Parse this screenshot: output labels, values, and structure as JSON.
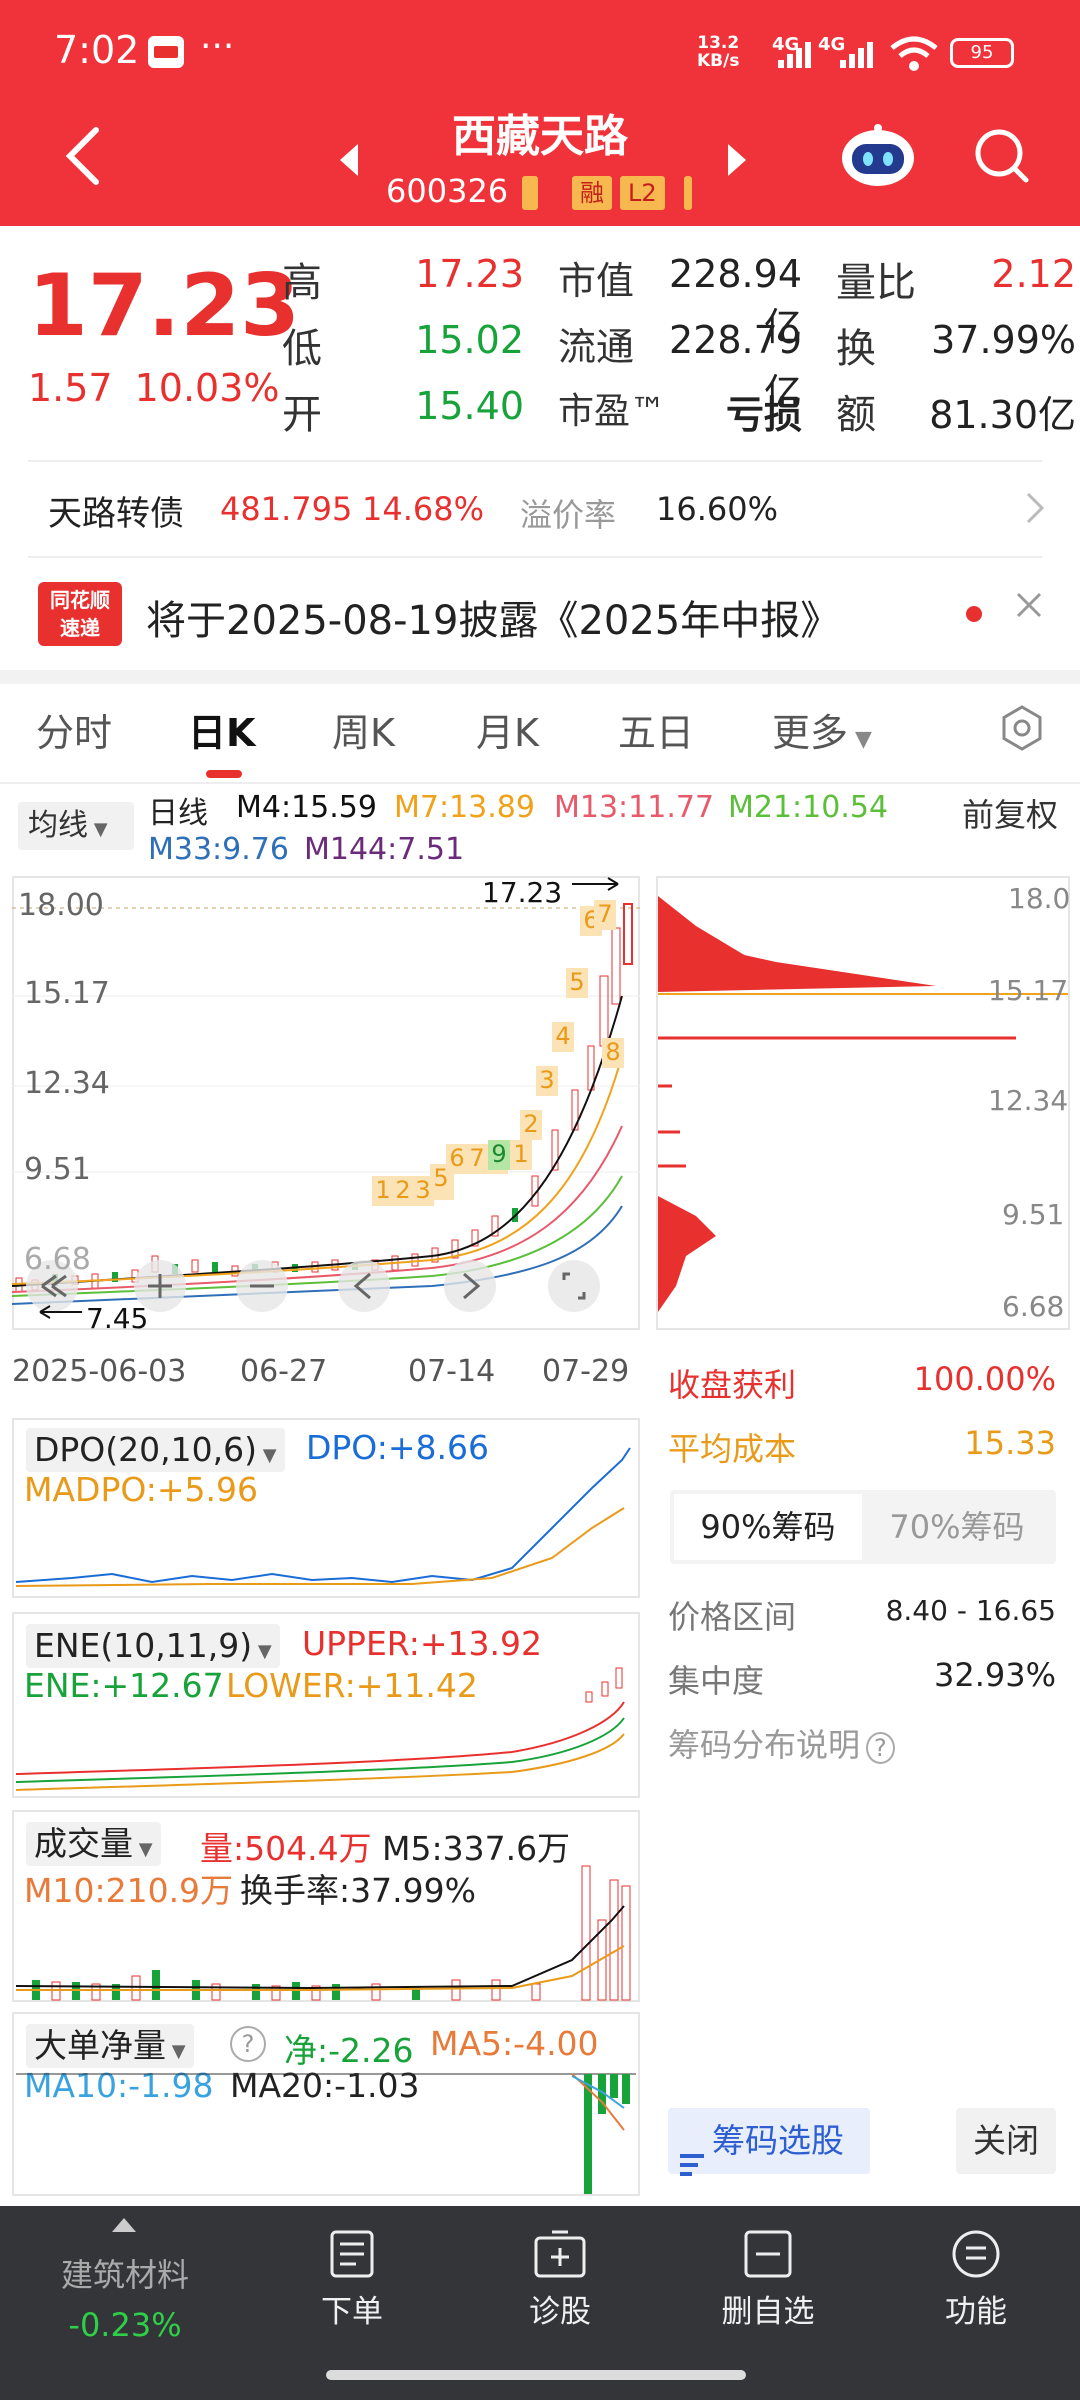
{
  "status_bar": {
    "time": "7:02",
    "dots": "···",
    "net_speed_value": "13.2",
    "net_speed_unit": "KB/s",
    "signal_1": "4G",
    "signal_2": "4G",
    "battery": "95"
  },
  "header": {
    "stock_name": "西藏天路",
    "stock_code": "600326",
    "tag_margin": "融",
    "tag_level": "L2"
  },
  "quote": {
    "price": "17.23",
    "change": "1.57",
    "change_pct": "10.03%",
    "high_label": "高",
    "high": "17.23",
    "low_label": "低",
    "low": "15.02",
    "open_label": "开",
    "open": "15.40",
    "mktcap_label": "市值",
    "mktcap": "228.94亿",
    "float_label": "流通",
    "float": "228.79亿",
    "pe_label": "市盈™",
    "pe": "亏损",
    "vol_ratio_label": "量比",
    "vol_ratio": "2.12",
    "turnover_label": "换",
    "turnover": "37.99%",
    "amount_label": "额",
    "amount": "81.30亿"
  },
  "bond": {
    "label": "天路转债",
    "price": "481.795",
    "pct": "14.68%",
    "premium_label": "溢价率",
    "premium": "16.60%"
  },
  "news": {
    "logo_line1": "同花顺",
    "logo_line2": "速递",
    "text": "将于2025-08-19披露《2025年中报》"
  },
  "tabs": [
    "分时",
    "日K",
    "周K",
    "月K",
    "五日",
    "更多"
  ],
  "ma_legend": {
    "select": "均线",
    "period": "日线",
    "m4": "M4:15.59",
    "m7": "M7:13.89",
    "m13": "M13:11.77",
    "m21": "M21:10.54",
    "m33": "M33:9.76",
    "m144": "M144:7.51",
    "adjust": "前复权"
  },
  "colors": {
    "brand_red": "#f0333a",
    "rise": "#e8312f",
    "fall": "#18a33a",
    "m4": "#111111",
    "m7": "#f0a21b",
    "m13": "#e8596a",
    "m21": "#5cbf3a",
    "m33": "#2e6fb8",
    "m144": "#6b2a7a"
  },
  "kline": {
    "y_ticks": [
      "18.00",
      "15.17",
      "12.34",
      "9.51",
      "6.68"
    ],
    "high_label": "17.23",
    "low_label": "7.45",
    "dates": [
      "2025-06-03",
      "06-27",
      "07-14",
      "07-29"
    ],
    "signal_numbers": [
      "1",
      "2",
      "3",
      "4",
      "5",
      "6",
      "7",
      "8",
      "9",
      "1",
      "2",
      "3",
      "4",
      "5",
      "6",
      "7",
      "8"
    ]
  },
  "chip_axis": [
    "18.0",
    "15.17",
    "12.34",
    "9.51",
    "6.68"
  ],
  "dpo": {
    "name": "DPO(20,10,6)",
    "dpo": "DPO:+8.66",
    "madpo": "MADPO:+5.96"
  },
  "ene": {
    "name": "ENE(10,11,9)",
    "upper": "UPPER:+13.92",
    "ene": "ENE:+12.67",
    "lower": "LOWER:+11.42"
  },
  "volume": {
    "name": "成交量",
    "vol": "量:504.4万",
    "m5": "M5:337.6万",
    "m10": "M10:210.9万",
    "turnover": "换手率:37.99%"
  },
  "bignet": {
    "name": "大单净量",
    "net": "净:-2.26",
    "ma5": "MA5:-4.00",
    "ma10": "MA10:-1.98",
    "ma20": "MA20:-1.03"
  },
  "chip_stats": {
    "profit_label": "收盘获利",
    "profit": "100.00%",
    "avg_cost_label": "平均成本",
    "avg_cost": "15.33",
    "tab_90": "90%筹码",
    "tab_70": "70%筹码",
    "range_label": "价格区间",
    "range": "8.40 - 16.65",
    "conc_label": "集中度",
    "conc": "32.93%",
    "explain": "筹码分布说明",
    "select_btn": "筹码选股",
    "close_btn": "关闭"
  },
  "bottom_bar": {
    "industry_name": "建筑材料",
    "industry_chg": "-0.23%",
    "order": "下单",
    "diagnose": "诊股",
    "remove_fav": "删自选",
    "function": "功能"
  }
}
